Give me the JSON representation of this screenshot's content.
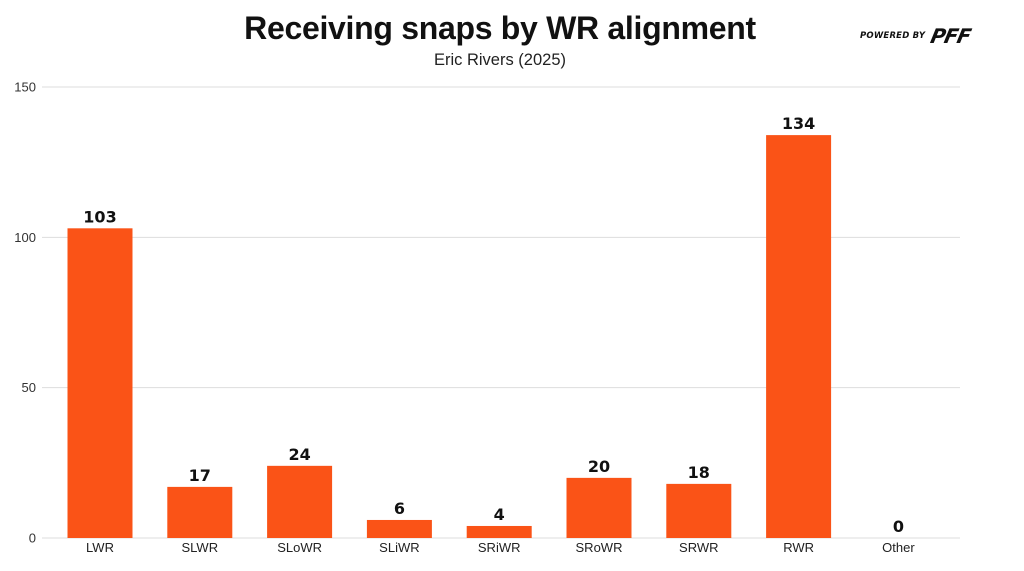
{
  "header": {
    "title": "Receiving snaps by WR alignment",
    "subtitle": "Eric Rivers (2025)",
    "brand_prefix": "POWERED BY",
    "brand_logo": "PFF"
  },
  "colors": {
    "bar": "#fa5317",
    "grid": "#dddddd",
    "text": "#111111"
  },
  "chart_data": {
    "type": "bar",
    "title": "Receiving snaps by WR alignment",
    "subtitle": "Eric Rivers (2025)",
    "xlabel": "",
    "ylabel": "",
    "categories": [
      "LWR",
      "SLWR",
      "SLoWR",
      "SLiWR",
      "SRiWR",
      "SRoWR",
      "SRWR",
      "RWR",
      "Other"
    ],
    "values": [
      103,
      17,
      24,
      6,
      4,
      20,
      18,
      134,
      0
    ],
    "ylim": [
      0,
      150
    ],
    "yticks": [
      0,
      50,
      100,
      150
    ],
    "grid": true,
    "data_labels": true,
    "legend": "none"
  }
}
